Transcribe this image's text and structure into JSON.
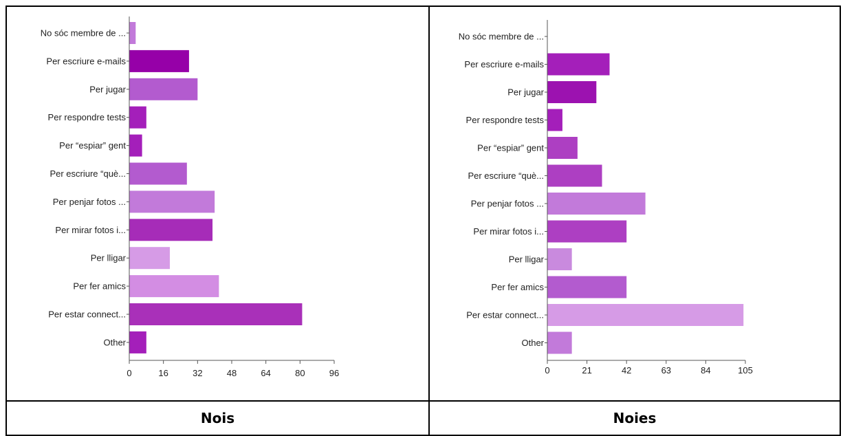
{
  "chart_data": [
    {
      "type": "bar",
      "orientation": "horizontal",
      "categories": [
        "No sóc membre de ...",
        "Per escriure e-mails",
        "Per jugar",
        "Per respondre tests",
        "Per “espiar” gent",
        "Per escriure “què...",
        "Per penjar fotos ...",
        "Per mirar fotos i...",
        "Per lligar",
        "Per fer amics",
        "Per estar connect...",
        "Other"
      ],
      "values": [
        3,
        28,
        32,
        8,
        6,
        27,
        40,
        39,
        19,
        42,
        81,
        8
      ],
      "colors": [
        "#c27ada",
        "#9600a8",
        "#b35bcf",
        "#a41fba",
        "#a41fba",
        "#b35bcf",
        "#c27ada",
        "#a62cb8",
        "#d69be6",
        "#d38de3",
        "#a930b9",
        "#a41fba"
      ],
      "xlim": [
        0,
        96
      ],
      "xticks": [
        0,
        16,
        32,
        48,
        64,
        80,
        96
      ],
      "caption": "Nois"
    },
    {
      "type": "bar",
      "orientation": "horizontal",
      "categories": [
        "No sóc membre de ...",
        "Per escriure e-mails",
        "Per jugar",
        "Per respondre tests",
        "Per “espiar” gent",
        "Per escriure “què...",
        "Per penjar fotos ...",
        "Per mirar fotos i...",
        "Per lligar",
        "Per fer amics",
        "Per estar connect...",
        "Other"
      ],
      "values": [
        0,
        33,
        26,
        8,
        16,
        29,
        52,
        42,
        13,
        42,
        104,
        13
      ],
      "colors": [
        "#c27ada",
        "#a41fba",
        "#9c12b0",
        "#a41fba",
        "#ad3fc2",
        "#ad3fc2",
        "#c27ada",
        "#ad3fc2",
        "#c98ade",
        "#b35bcf",
        "#d69be6",
        "#c27ada"
      ],
      "xlim": [
        0,
        105
      ],
      "xticks": [
        0,
        21,
        42,
        63,
        84,
        105
      ],
      "caption": "Noies"
    }
  ]
}
